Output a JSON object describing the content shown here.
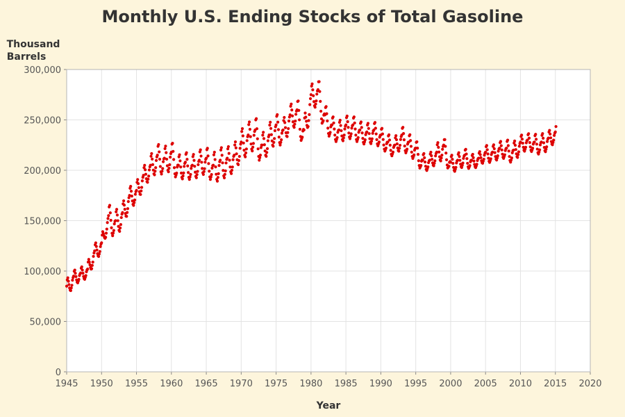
{
  "chart_data": {
    "type": "scatter",
    "title": "Monthly U.S. Ending Stocks of Total Gasoline",
    "ylabel_lines": [
      "Thousand",
      "Barrels"
    ],
    "xlabel": "Year",
    "xlim": [
      1945,
      2020
    ],
    "ylim": [
      0,
      300000
    ],
    "xticks": [
      1945,
      1950,
      1955,
      1960,
      1965,
      1970,
      1975,
      1980,
      1985,
      1990,
      1995,
      2000,
      2005,
      2010,
      2015,
      2020
    ],
    "yticks": [
      0,
      50000,
      100000,
      150000,
      200000,
      250000,
      300000
    ],
    "ytick_labels": [
      "0",
      "50,000",
      "100,000",
      "150,000",
      "200,000",
      "250,000",
      "300,000"
    ],
    "grid": true,
    "point_color": "#dd0000",
    "series": [
      {
        "frequency": "monthly",
        "x": [
          1945.0,
          1946.0,
          1947.0,
          1948.0,
          1949.0,
          1950.0,
          1951.0,
          1952.0,
          1953.0,
          1954.0,
          1955.0,
          1956.0,
          1957.0,
          1958.0,
          1959.0,
          1960.0,
          1961.0,
          1962.0,
          1963.0,
          1964.0,
          1965.0,
          1966.0,
          1967.0,
          1968.0,
          1969.0,
          1970.0,
          1971.0,
          1972.0,
          1973.0,
          1974.0,
          1975.0,
          1976.0,
          1977.0,
          1978.0,
          1979.0,
          1980.0,
          1981.0,
          1982.0,
          1983.0,
          1984.0,
          1985.0,
          1986.0,
          1987.0,
          1988.0,
          1989.0,
          1990.0,
          1991.0,
          1992.0,
          1993.0,
          1994.0,
          1995.0,
          1996.0,
          1997.0,
          1998.0,
          1999.0,
          2000.0,
          2001.0,
          2002.0,
          2003.0,
          2004.0,
          2005.0,
          2006.0,
          2007.0,
          2008.0,
          2009.0,
          2010.0,
          2011.0,
          2012.0,
          2013.0,
          2014.0,
          2015.0
        ],
        "y_january": [
          85000,
          95000,
          98000,
          102000,
          120000,
          128000,
          155000,
          150000,
          158000,
          175000,
          180000,
          195000,
          205000,
          215000,
          212000,
          218000,
          205000,
          208000,
          205000,
          210000,
          212000,
          205000,
          210000,
          212000,
          215000,
          228000,
          235000,
          240000,
          225000,
          235000,
          245000,
          240000,
          255000,
          260000,
          240000,
          275000,
          280000,
          255000,
          245000,
          240000,
          245000,
          245000,
          240000,
          238000,
          240000,
          235000,
          228000,
          225000,
          235000,
          228000,
          222000,
          210000,
          210000,
          218000,
          225000,
          208000,
          210000,
          215000,
          210000,
          212000,
          218000,
          218000,
          222000,
          222000,
          220000,
          228000,
          230000,
          228000,
          228000,
          232000,
          238000
        ],
        "amplitude": [
          12000,
          10000,
          10000,
          12000,
          12000,
          12000,
          20000,
          18000,
          16000,
          15000,
          15000,
          15000,
          18000,
          20000,
          20000,
          20000,
          18000,
          18000,
          18000,
          18000,
          20000,
          22000,
          22000,
          20000,
          20000,
          22000,
          22000,
          25000,
          20000,
          20000,
          20000,
          18000,
          18000,
          22000,
          20000,
          18000,
          22000,
          18000,
          16000,
          16000,
          16000,
          16000,
          15000,
          15000,
          15000,
          14000,
          14000,
          14000,
          16000,
          15000,
          15000,
          12000,
          12000,
          15000,
          15000,
          12000,
          12000,
          12000,
          10000,
          10000,
          12000,
          12000,
          12000,
          15000,
          14000,
          12000,
          12000,
          14000,
          14000,
          12000,
          12000
        ]
      }
    ]
  }
}
